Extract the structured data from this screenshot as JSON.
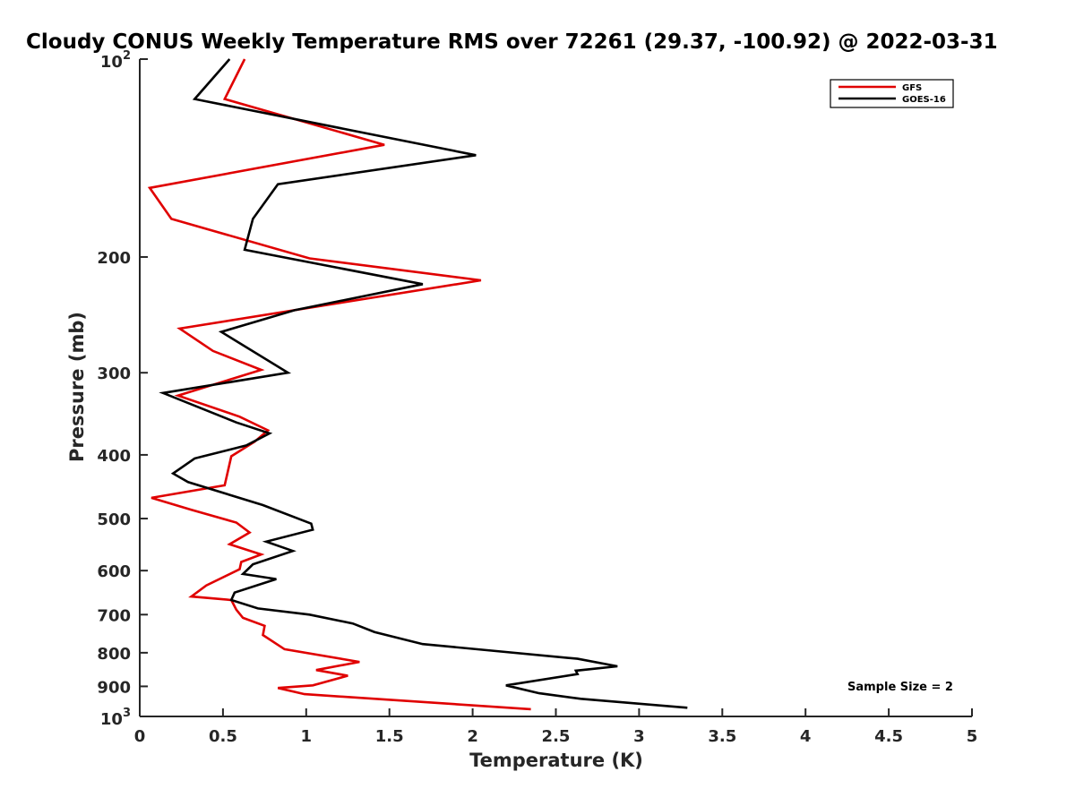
{
  "chart_data": {
    "type": "line",
    "title": "Cloudy CONUS Weekly Temperature RMS over 72261 (29.37, -100.92) @ 2022-03-31",
    "xlabel": "Temperature (K)",
    "ylabel": "Pressure (mb)",
    "xlim": [
      0,
      5
    ],
    "ylim": [
      100,
      1000
    ],
    "y_scale": "log",
    "y_reversed": true,
    "grid": false,
    "legend_position": "top-right",
    "x_ticks": [
      "0",
      "0.5",
      "1",
      "1.5",
      "2",
      "2.5",
      "3",
      "3.5",
      "4",
      "4.5",
      "5"
    ],
    "y_ticks": [
      {
        "value": 100,
        "base": "10",
        "exp": "2"
      },
      {
        "value": 200,
        "label": "200"
      },
      {
        "value": 300,
        "label": "300"
      },
      {
        "value": 400,
        "label": "400"
      },
      {
        "value": 500,
        "label": "500"
      },
      {
        "value": 600,
        "label": "600"
      },
      {
        "value": 700,
        "label": "700"
      },
      {
        "value": 800,
        "label": "800"
      },
      {
        "value": 900,
        "label": "900"
      },
      {
        "value": 1000,
        "base": "10",
        "exp": "3"
      }
    ],
    "annotation": "Sample Size = 2",
    "series": [
      {
        "name": "GFS",
        "color": "#e00000",
        "points": [
          [
            0.63,
            100
          ],
          [
            0.51,
            115
          ],
          [
            1.47,
            135
          ],
          [
            0.06,
            157
          ],
          [
            0.19,
            175
          ],
          [
            1.02,
            201
          ],
          [
            2.05,
            217
          ],
          [
            0.24,
            257
          ],
          [
            0.44,
            278
          ],
          [
            0.73,
            297
          ],
          [
            0.23,
            325
          ],
          [
            0.6,
            350
          ],
          [
            0.77,
            367
          ],
          [
            0.69,
            382
          ],
          [
            0.55,
            402
          ],
          [
            0.51,
            445
          ],
          [
            0.07,
            465
          ],
          [
            0.31,
            485
          ],
          [
            0.58,
            507
          ],
          [
            0.66,
            525
          ],
          [
            0.54,
            547
          ],
          [
            0.73,
            567
          ],
          [
            0.61,
            582
          ],
          [
            0.6,
            597
          ],
          [
            0.4,
            632
          ],
          [
            0.31,
            657
          ],
          [
            0.55,
            665
          ],
          [
            0.58,
            688
          ],
          [
            0.62,
            708
          ],
          [
            0.75,
            728
          ],
          [
            0.74,
            752
          ],
          [
            0.87,
            790
          ],
          [
            1.32,
            826
          ],
          [
            1.06,
            850
          ],
          [
            1.25,
            867
          ],
          [
            1.04,
            897
          ],
          [
            0.83,
            905
          ],
          [
            0.99,
            925
          ],
          [
            2.35,
            975
          ]
        ]
      },
      {
        "name": "GOES-16",
        "color": "#000000",
        "points": [
          [
            0.54,
            100
          ],
          [
            0.33,
            115
          ],
          [
            2.02,
            140
          ],
          [
            0.83,
            155
          ],
          [
            0.68,
            175
          ],
          [
            0.63,
            195
          ],
          [
            1.7,
            220
          ],
          [
            0.93,
            241
          ],
          [
            0.49,
            260
          ],
          [
            0.89,
            300
          ],
          [
            0.14,
            322
          ],
          [
            0.58,
            357
          ],
          [
            0.78,
            371
          ],
          [
            0.64,
            387
          ],
          [
            0.33,
            405
          ],
          [
            0.2,
            427
          ],
          [
            0.29,
            440
          ],
          [
            0.74,
            477
          ],
          [
            1.03,
            509
          ],
          [
            1.04,
            520
          ],
          [
            0.76,
            542
          ],
          [
            0.92,
            560
          ],
          [
            0.68,
            587
          ],
          [
            0.62,
            607
          ],
          [
            0.82,
            618
          ],
          [
            0.57,
            648
          ],
          [
            0.55,
            665
          ],
          [
            0.71,
            685
          ],
          [
            1.02,
            700
          ],
          [
            1.28,
            722
          ],
          [
            1.41,
            744
          ],
          [
            1.7,
            776
          ],
          [
            2.63,
            817
          ],
          [
            2.87,
            839
          ],
          [
            2.62,
            852
          ],
          [
            2.63,
            862
          ],
          [
            2.2,
            897
          ],
          [
            2.4,
            922
          ],
          [
            2.65,
            940
          ],
          [
            3.29,
            970
          ]
        ]
      }
    ]
  }
}
